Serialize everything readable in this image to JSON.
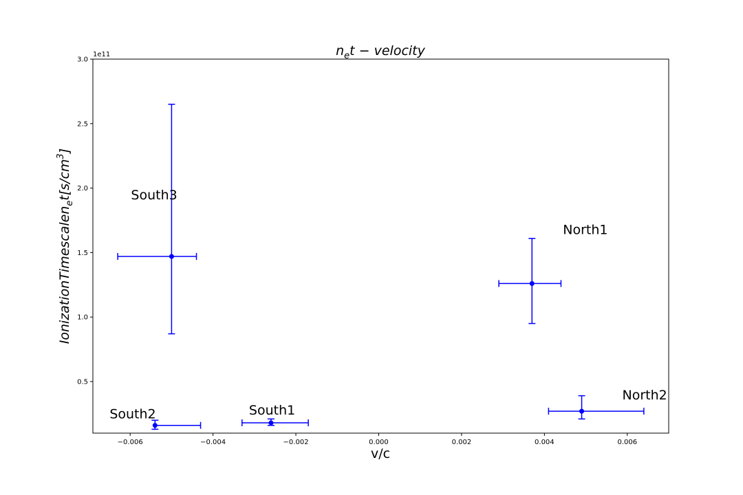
{
  "chart_data": {
    "type": "scatter",
    "title_base": "n",
    "title_sub": "e",
    "title_rest": "t − velocity",
    "xlabel": "v/c",
    "ylabel_base": "IonizationTimescalen",
    "ylabel_sub": "e",
    "ylabel_rest": "t[s/cm",
    "ylabel_sup": "3",
    "ylabel_close": "]",
    "y_exponent_label": "1e11",
    "xlim": [
      -0.0069,
      0.007
    ],
    "ylim": [
      0.1,
      3.0
    ],
    "x_ticks": [
      -0.006,
      -0.004,
      -0.002,
      0.0,
      0.002,
      0.004,
      0.006
    ],
    "x_tick_labels": [
      "−0.006",
      "−0.004",
      "−0.002",
      "0.000",
      "0.002",
      "0.004",
      "0.006"
    ],
    "y_ticks": [
      0.5,
      1.0,
      1.5,
      2.0,
      2.5,
      3.0
    ],
    "y_tick_labels": [
      "0.5",
      "1.0",
      "1.5",
      "2.0",
      "2.5",
      "3.0"
    ],
    "color": "#0000ff",
    "points": [
      {
        "label": "South3",
        "x": -0.005,
        "y": 1.47,
        "xerr_low": -0.0063,
        "xerr_high": -0.0044,
        "yerr_low": 0.87,
        "yerr_high": 2.65
      },
      {
        "label": "North1",
        "x": 0.0037,
        "y": 1.26,
        "xerr_low": 0.0029,
        "xerr_high": 0.0044,
        "yerr_low": 0.95,
        "yerr_high": 1.61
      },
      {
        "label": "South2",
        "x": -0.0054,
        "y": 0.16,
        "xerr_low": -0.0054,
        "xerr_high": -0.0043,
        "yerr_low": 0.13,
        "yerr_high": 0.2
      },
      {
        "label": "South1",
        "x": -0.0026,
        "y": 0.18,
        "xerr_low": -0.0033,
        "xerr_high": -0.0017,
        "yerr_low": 0.16,
        "yerr_high": 0.21
      },
      {
        "label": "North2",
        "x": 0.0049,
        "y": 0.27,
        "xerr_low": 0.0041,
        "xerr_high": 0.0064,
        "yerr_low": 0.21,
        "yerr_high": 0.39
      }
    ]
  }
}
